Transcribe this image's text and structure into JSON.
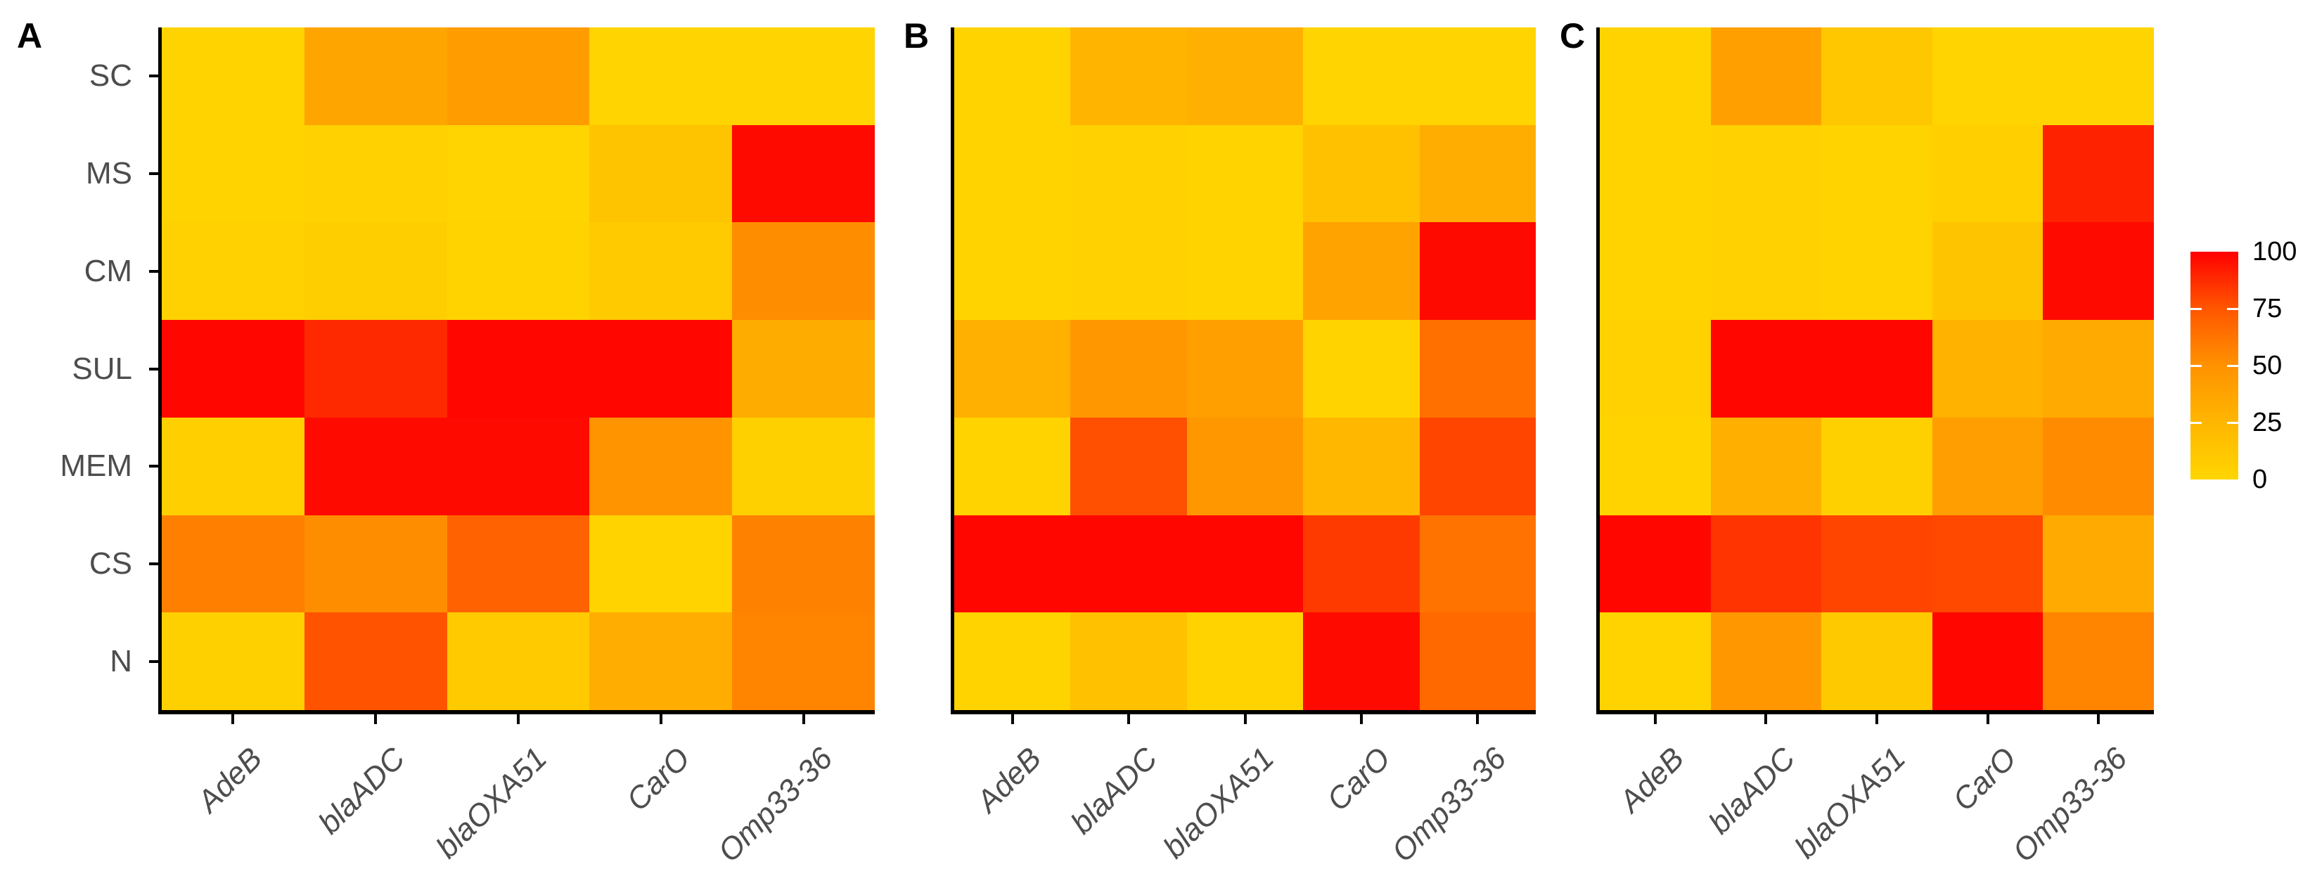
{
  "chart_data": [
    {
      "type": "heatmap",
      "panel": "A",
      "show_row_labels": true,
      "rows": [
        "SC",
        "MS",
        "CM",
        "SUL",
        "MEM",
        "CS",
        "N"
      ],
      "columns": [
        "AdeB",
        "blaADC",
        "blaOXA51",
        "CarO",
        "Omp33-36"
      ],
      "values": [
        [
          2,
          37,
          43,
          1,
          1
        ],
        [
          2,
          3,
          1,
          14,
          97
        ],
        [
          3,
          6,
          2,
          9,
          52
        ],
        [
          98,
          88,
          98,
          98,
          32
        ],
        [
          5,
          97,
          97,
          49,
          4
        ],
        [
          58,
          52,
          70,
          2,
          57
        ],
        [
          4,
          76,
          8,
          31,
          56
        ]
      ],
      "value_range": [
        0,
        100
      ]
    },
    {
      "type": "heatmap",
      "panel": "B",
      "show_row_labels": false,
      "rows": [
        "SC",
        "MS",
        "CM",
        "SUL",
        "MEM",
        "CS",
        "N"
      ],
      "columns": [
        "AdeB",
        "blaADC",
        "blaOXA51",
        "CarO",
        "Omp33-36"
      ],
      "values": [
        [
          2,
          26,
          29,
          1,
          1
        ],
        [
          2,
          3,
          2,
          16,
          31
        ],
        [
          2,
          3,
          2,
          38,
          97
        ],
        [
          29,
          46,
          40,
          2,
          64
        ],
        [
          2,
          77,
          46,
          24,
          80
        ],
        [
          98,
          98,
          98,
          83,
          63
        ],
        [
          2,
          16,
          2,
          97,
          67
        ]
      ],
      "value_range": [
        0,
        100
      ]
    },
    {
      "type": "heatmap",
      "panel": "C",
      "show_row_labels": false,
      "rows": [
        "SC",
        "MS",
        "CM",
        "SUL",
        "MEM",
        "CS",
        "N"
      ],
      "columns": [
        "AdeB",
        "blaADC",
        "blaOXA51",
        "CarO",
        "Omp33-36"
      ],
      "values": [
        [
          2,
          40,
          11,
          1,
          1
        ],
        [
          2,
          3,
          2,
          5,
          90
        ],
        [
          2,
          3,
          2,
          14,
          97
        ],
        [
          3,
          98,
          98,
          28,
          33
        ],
        [
          2,
          30,
          4,
          42,
          53
        ],
        [
          98,
          85,
          80,
          79,
          33
        ],
        [
          2,
          46,
          10,
          98,
          56
        ]
      ],
      "value_range": [
        0,
        100
      ]
    }
  ],
  "legend": {
    "position": "right",
    "min": 0,
    "max": 100,
    "tick_labels": [
      "100",
      "75",
      "50",
      "25",
      "0"
    ],
    "tick_values": [
      100,
      75,
      50,
      25,
      0
    ],
    "gradient_stops": [
      {
        "value": 0,
        "color": "#FFD500"
      },
      {
        "value": 25,
        "color": "#FFB600"
      },
      {
        "value": 50,
        "color": "#FF9200"
      },
      {
        "value": 75,
        "color": "#FF5600"
      },
      {
        "value": 100,
        "color": "#FF0000"
      }
    ]
  },
  "styles": {
    "background": "#FFFFFF",
    "axis_color": "#000000",
    "axis_tick_label_color": "#4D4D4D",
    "panel_label_color": "#000000",
    "legend_label_color": "#000000"
  }
}
